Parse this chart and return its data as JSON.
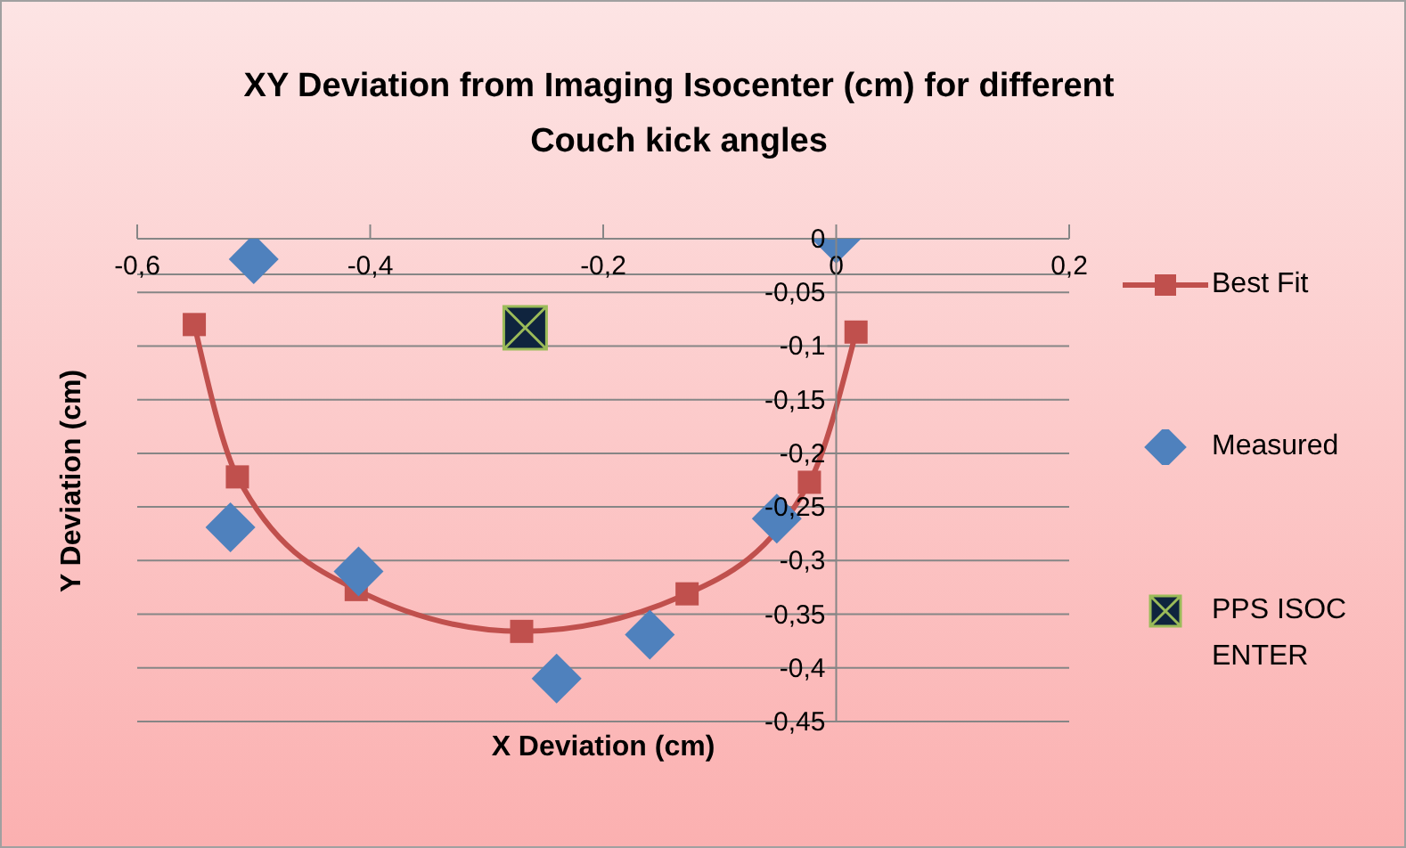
{
  "chart_data": {
    "type": "scatter",
    "title": "XY Deviation from Imaging Isocenter (cm) for different Couch kick angles",
    "xlabel": "X Deviation (cm)",
    "ylabel": "Y Deviation (cm)",
    "series": [
      {
        "name": "Best Fit",
        "type": "line",
        "color": "#c0504d",
        "marker": "square",
        "x": [
          -0.551,
          -0.514,
          -0.412,
          -0.27,
          -0.128,
          -0.023,
          0.017
        ],
        "values": [
          -0.08,
          -0.222,
          -0.327,
          -0.366,
          -0.331,
          -0.227,
          -0.087
        ]
      },
      {
        "name": "Measured",
        "color": "#4f81bd",
        "marker": "diamond",
        "x": [
          -0.5,
          0,
          -0.52,
          -0.41,
          -0.24,
          -0.16,
          -0.051
        ],
        "values": [
          -0.019,
          0,
          -0.269,
          -0.31,
          -0.41,
          -0.369,
          -0.261
        ]
      },
      {
        "name": "PPS ISOCENTER",
        "color": "#0f243e",
        "marker": "cross",
        "x": [
          -0.267
        ],
        "values": [
          -0.083
        ]
      }
    ],
    "xlim": [
      -0.6,
      0.2
    ],
    "ylim": [
      -0.45,
      0
    ],
    "xticks": [
      {
        "value": -0.6,
        "label": "-0,6"
      },
      {
        "value": -0.4,
        "label": "-0,4"
      },
      {
        "value": -0.2,
        "label": "-0,2"
      },
      0,
      {
        "value": 0.2,
        "label": "0,2"
      }
    ],
    "yticks": [
      0,
      {
        "value": -0.05,
        "label": "-0,05"
      },
      {
        "value": -0.1,
        "label": "-0,1"
      },
      {
        "value": -0.15,
        "label": "-0,15"
      },
      {
        "value": -0.2,
        "label": "-0,2"
      },
      {
        "value": -0.25,
        "label": "-0,25"
      },
      {
        "value": -0.3,
        "label": "-0,3"
      },
      {
        "value": -0.35,
        "label": "-0,35"
      },
      {
        "value": -0.4,
        "label": "-0,4"
      },
      {
        "value": -0.45,
        "label": "-0,45"
      }
    ],
    "grid": "y",
    "legend": "right"
  }
}
